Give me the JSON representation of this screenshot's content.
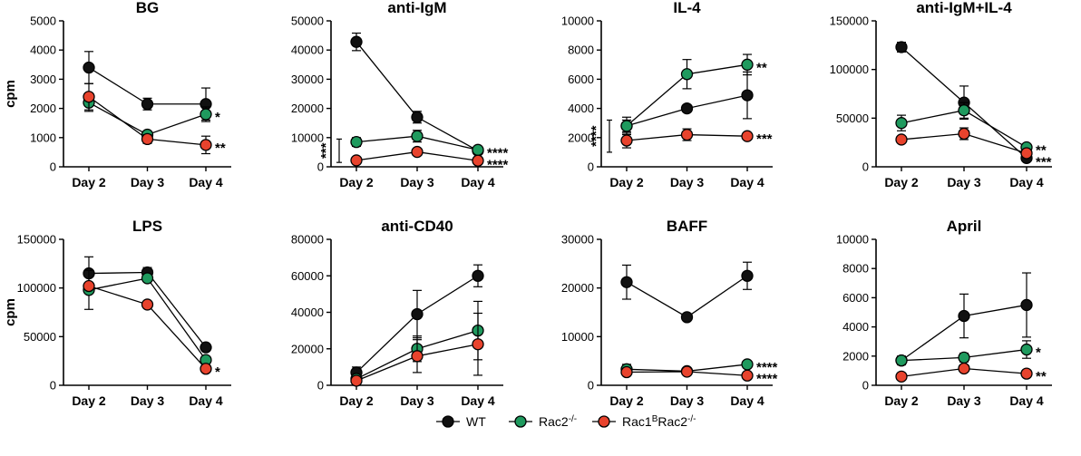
{
  "colors": {
    "WT": "#111111",
    "Rac2": "#1f9a5e",
    "Rac1BRac2": "#e8432d",
    "axis": "#000000"
  },
  "legend": [
    {
      "key": "WT",
      "label": "WT",
      "sup": ""
    },
    {
      "key": "Rac2",
      "label": "Rac2",
      "sup": "-/-"
    },
    {
      "key": "Rac1BRac2",
      "label": "Rac1",
      "sup": "B",
      "label2": "Rac2",
      "sup2": "-/-"
    }
  ],
  "ylabel": "cpm",
  "chart_data": [
    {
      "type": "line",
      "title": "BG",
      "categories": [
        "Day 2",
        "Day 3",
        "Day 4"
      ],
      "ylim": [
        0,
        5000
      ],
      "yticks": [
        0,
        1000,
        2000,
        3000,
        4000,
        5000
      ],
      "ytick_labels": [
        "0",
        "1000",
        "2000",
        "3000",
        "4000",
        "5000"
      ],
      "series": [
        {
          "name": "WT",
          "values": [
            3400,
            2150,
            2150
          ],
          "errors": [
            550,
            200,
            550
          ]
        },
        {
          "name": "Rac2",
          "values": [
            2200,
            1100,
            1800
          ],
          "errors": [
            300,
            100,
            250
          ]
        },
        {
          "name": "Rac1BRac2",
          "values": [
            2400,
            950,
            750
          ],
          "errors": [
            450,
            150,
            300
          ]
        }
      ],
      "annotations": [
        {
          "text": "*",
          "series": "Rac2",
          "point": 2
        },
        {
          "text": "**",
          "series": "Rac1BRac2",
          "point": 2
        }
      ]
    },
    {
      "type": "line",
      "title": "anti-IgM",
      "categories": [
        "Day 2",
        "Day 3",
        "Day 4"
      ],
      "ylim": [
        0,
        50000
      ],
      "yticks": [
        0,
        10000,
        20000,
        30000,
        40000,
        50000
      ],
      "ytick_labels": [
        "0",
        "10000",
        "20000",
        "30000",
        "40000",
        "50000"
      ],
      "series": [
        {
          "name": "WT",
          "values": [
            42800,
            17000,
            5500
          ],
          "errors": [
            3000,
            2000,
            500
          ]
        },
        {
          "name": "Rac2",
          "values": [
            8500,
            10500,
            5800
          ],
          "errors": [
            1500,
            2000,
            500
          ]
        },
        {
          "name": "Rac1BRac2",
          "values": [
            2200,
            5100,
            2100
          ],
          "errors": [
            300,
            500,
            300
          ]
        }
      ],
      "annotations": [
        {
          "text": "****",
          "series": "Rac2",
          "point": 2
        },
        {
          "text": "****",
          "series": "Rac1BRac2",
          "point": 2
        }
      ],
      "bracket": {
        "text": "***",
        "y1": 1500,
        "y2": 9500
      }
    },
    {
      "type": "line",
      "title": "IL-4",
      "categories": [
        "Day 2",
        "Day 3",
        "Day 4"
      ],
      "ylim": [
        0,
        10000
      ],
      "yticks": [
        0,
        2000,
        4000,
        6000,
        8000,
        10000
      ],
      "ytick_labels": [
        "0",
        "2000",
        "4000",
        "6000",
        "8000",
        "10000"
      ],
      "series": [
        {
          "name": "WT",
          "values": [
            2800,
            4000,
            4900
          ],
          "errors": [
            600,
            200,
            1600
          ]
        },
        {
          "name": "Rac2",
          "values": [
            2800,
            6350,
            7000
          ],
          "errors": [
            400,
            1000,
            700
          ]
        },
        {
          "name": "Rac1BRac2",
          "values": [
            1800,
            2200,
            2100
          ],
          "errors": [
            500,
            400,
            200
          ]
        }
      ],
      "annotations": [
        {
          "text": "**",
          "series": "Rac2",
          "point": 2
        },
        {
          "text": "***",
          "series": "Rac1BRac2",
          "point": 2
        }
      ],
      "bracket": {
        "text": "****",
        "y1": 1000,
        "y2": 3200
      }
    },
    {
      "type": "line",
      "title": "anti-IgM+IL-4",
      "categories": [
        "Day 2",
        "Day 3",
        "Day 4"
      ],
      "ylim": [
        0,
        150000
      ],
      "yticks": [
        0,
        50000,
        100000,
        150000
      ],
      "ytick_labels": [
        "0",
        "50000",
        "100000",
        "150000"
      ],
      "series": [
        {
          "name": "WT",
          "values": [
            123000,
            66000,
            9000
          ],
          "errors": [
            5000,
            17000,
            2000
          ]
        },
        {
          "name": "Rac2",
          "values": [
            45000,
            58000,
            20000
          ],
          "errors": [
            8000,
            8000,
            2000
          ]
        },
        {
          "name": "Rac1BRac2",
          "values": [
            28000,
            34000,
            14000
          ],
          "errors": [
            3000,
            6000,
            2000
          ]
        }
      ],
      "annotations": [
        {
          "text": "**",
          "series": "Rac2",
          "point": 2
        },
        {
          "text": "***",
          "series": "Rac1BRac2",
          "point": 2
        }
      ]
    },
    {
      "type": "line",
      "title": "LPS",
      "categories": [
        "Day 2",
        "Day 3",
        "Day 4"
      ],
      "ylim": [
        0,
        150000
      ],
      "yticks": [
        0,
        50000,
        100000,
        150000
      ],
      "ytick_labels": [
        "0",
        "50000",
        "100000",
        "150000"
      ],
      "series": [
        {
          "name": "WT",
          "values": [
            115000,
            116000,
            39000
          ],
          "errors": [
            17000,
            5000,
            2000
          ]
        },
        {
          "name": "Rac2",
          "values": [
            98000,
            110000,
            26000
          ],
          "errors": [
            20000,
            3000,
            3000
          ]
        },
        {
          "name": "Rac1BRac2",
          "values": [
            102000,
            83000,
            17000
          ],
          "errors": [
            3000,
            2000,
            3000
          ]
        }
      ],
      "annotations": [
        {
          "text": "*",
          "series": "Rac1BRac2",
          "point": 2
        }
      ]
    },
    {
      "type": "line",
      "title": "anti-CD40",
      "categories": [
        "Day 2",
        "Day 3",
        "Day 4"
      ],
      "ylim": [
        0,
        80000
      ],
      "yticks": [
        0,
        20000,
        40000,
        60000,
        80000
      ],
      "ytick_labels": [
        "0",
        "20000",
        "40000",
        "60000",
        "80000"
      ],
      "series": [
        {
          "name": "WT",
          "values": [
            7000,
            39000,
            60000
          ],
          "errors": [
            3000,
            13000,
            6000
          ]
        },
        {
          "name": "Rac2",
          "values": [
            3500,
            20000,
            30000
          ],
          "errors": [
            2000,
            7000,
            16000
          ]
        },
        {
          "name": "Rac1BRac2",
          "values": [
            2500,
            16000,
            22500
          ],
          "errors": [
            1500,
            9000,
            17000
          ]
        }
      ],
      "annotations": []
    },
    {
      "type": "line",
      "title": "BAFF",
      "categories": [
        "Day 2",
        "Day 3",
        "Day 4"
      ],
      "ylim": [
        0,
        30000
      ],
      "yticks": [
        0,
        10000,
        20000,
        30000
      ],
      "ytick_labels": [
        "0",
        "10000",
        "20000",
        "30000"
      ],
      "series": [
        {
          "name": "WT",
          "values": [
            21200,
            14000,
            22500
          ],
          "errors": [
            3500,
            300,
            2800
          ]
        },
        {
          "name": "Rac2",
          "values": [
            3300,
            2900,
            4300
          ],
          "errors": [
            1000,
            400,
            500
          ]
        },
        {
          "name": "Rac1BRac2",
          "values": [
            2700,
            2800,
            2000
          ],
          "errors": [
            600,
            600,
            400
          ]
        }
      ],
      "annotations": [
        {
          "text": "****",
          "series": "Rac2",
          "point": 2
        },
        {
          "text": "****",
          "series": "Rac1BRac2",
          "point": 2
        }
      ]
    },
    {
      "type": "line",
      "title": "April",
      "categories": [
        "Day 2",
        "Day 3",
        "Day 4"
      ],
      "ylim": [
        0,
        10000
      ],
      "yticks": [
        0,
        2000,
        4000,
        6000,
        8000,
        10000
      ],
      "ytick_labels": [
        "0",
        "2000",
        "4000",
        "6000",
        "8000",
        "10000"
      ],
      "series": [
        {
          "name": "WT",
          "values": [
            1700,
            4750,
            5500
          ],
          "errors": [
            200,
            1500,
            2200
          ]
        },
        {
          "name": "Rac2",
          "values": [
            1700,
            1900,
            2450
          ],
          "errors": [
            300,
            300,
            600
          ]
        },
        {
          "name": "Rac1BRac2",
          "values": [
            600,
            1150,
            800
          ],
          "errors": [
            100,
            200,
            100
          ]
        }
      ],
      "annotations": [
        {
          "text": "*",
          "series": "Rac2",
          "point": 2
        },
        {
          "text": "**",
          "series": "Rac1BRac2",
          "point": 2
        }
      ]
    }
  ]
}
